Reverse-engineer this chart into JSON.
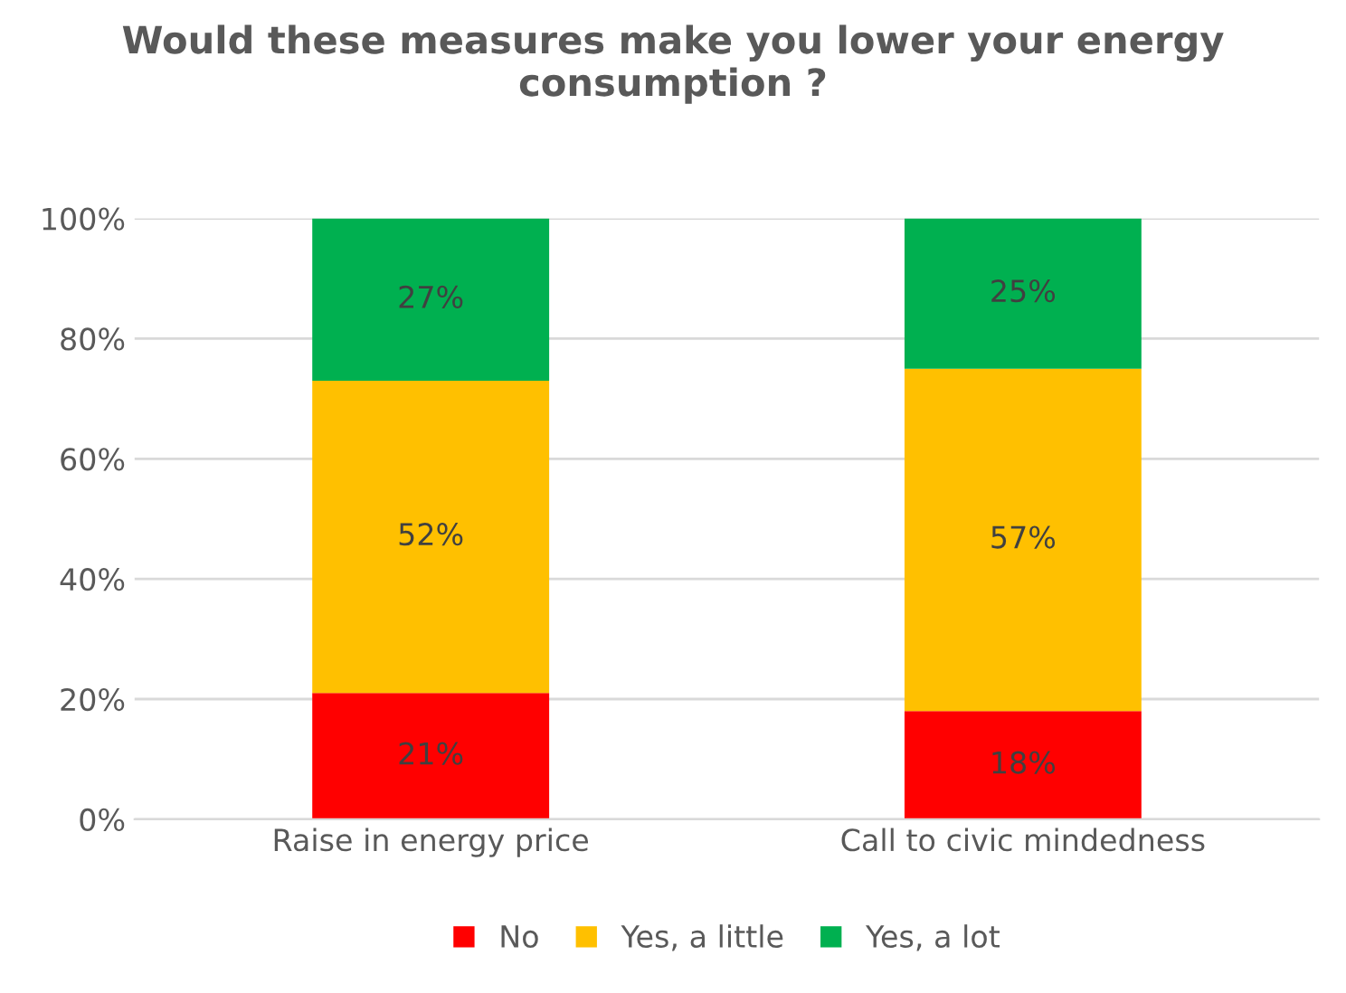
{
  "chart_data": {
    "type": "bar",
    "title": "Would these measures make you lower your energy consumption ?",
    "categories": [
      "Raise in energy price",
      "Call to civic mindedness"
    ],
    "stacked": true,
    "series": [
      {
        "name": "No",
        "color": "#ff0000",
        "values": [
          21,
          18
        ],
        "value_labels": [
          "21%",
          "18%"
        ]
      },
      {
        "name": "Yes, a little",
        "color": "#ffc000",
        "values": [
          52,
          57
        ],
        "value_labels": [
          "52%",
          "57%"
        ]
      },
      {
        "name": "Yes, a lot",
        "color": "#00b050",
        "values": [
          27,
          25
        ],
        "value_labels": [
          "27%",
          "25%"
        ]
      }
    ],
    "ylim": [
      0,
      100
    ],
    "yticks": [
      {
        "value": 0,
        "label": "0%"
      },
      {
        "value": 20,
        "label": "20%"
      },
      {
        "value": 40,
        "label": "40%"
      },
      {
        "value": 60,
        "label": "60%"
      },
      {
        "value": 80,
        "label": "80%"
      },
      {
        "value": 100,
        "label": "100%"
      }
    ],
    "grid": "y",
    "legend": "bottom"
  }
}
